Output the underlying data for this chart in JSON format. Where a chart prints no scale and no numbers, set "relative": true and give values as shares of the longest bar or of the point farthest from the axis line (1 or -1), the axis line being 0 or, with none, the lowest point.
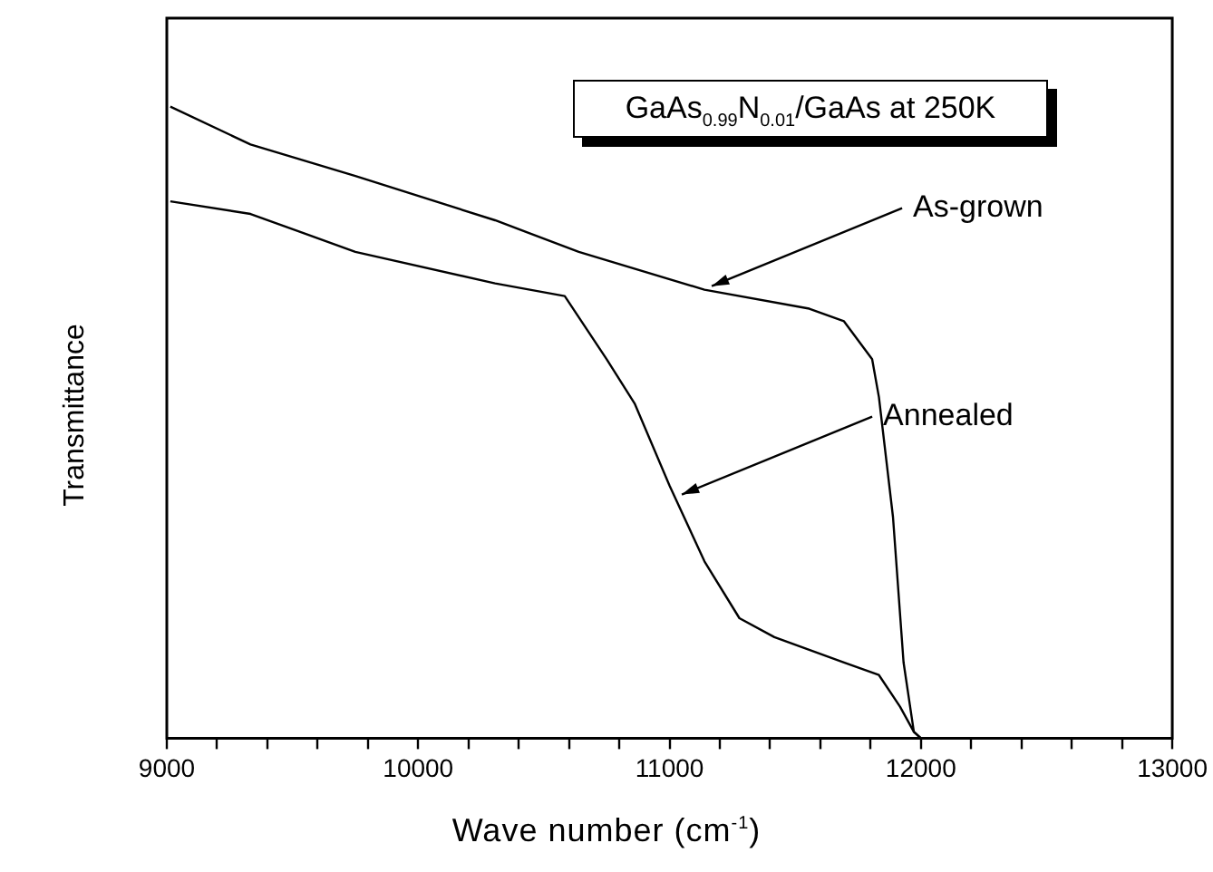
{
  "chart_data": {
    "type": "line",
    "title": "GaAs$_{0.99}$N$_{0.01}$/GaAs at 250K",
    "xlabel": "Wave number (cm$^{-1}$)",
    "ylabel": "Transmittance",
    "relative": true,
    "xlim": [
      9000,
      13000
    ],
    "xticks": [
      9000,
      {
        "value": 9200,
        "label": null
      },
      {
        "value": 9400,
        "label": null
      },
      {
        "value": 9600,
        "label": null
      },
      {
        "value": 9800,
        "label": null
      },
      10000,
      {
        "value": 10200,
        "label": null
      },
      {
        "value": 10400,
        "label": null
      },
      {
        "value": 10600,
        "label": null
      },
      {
        "value": 10800,
        "label": null
      },
      11000,
      {
        "value": 11200,
        "label": null
      },
      {
        "value": 11400,
        "label": null
      },
      {
        "value": 11600,
        "label": null
      },
      {
        "value": 11800,
        "label": null
      },
      12000,
      {
        "value": 12200,
        "label": null
      },
      {
        "value": 12400,
        "label": null
      },
      {
        "value": 12600,
        "label": null
      },
      {
        "value": 12800,
        "label": null
      },
      13000
    ],
    "series": [
      {
        "color": "#000000",
        "x": [
          9014,
          9333,
          9750,
          10306,
          10639,
          11139,
          11556,
          11694,
          11806,
          11833,
          11889,
          11931,
          11972,
          12000,
          13000
        ],
        "values": [
          1.0,
          0.94,
          0.89,
          0.82,
          0.77,
          0.71,
          0.68,
          0.66,
          0.6,
          0.54,
          0.35,
          0.12,
          0.01,
          0,
          0
        ]
      },
      {
        "color": "#000000",
        "x": [
          9014,
          9333,
          9750,
          10306,
          10583,
          10750,
          10861,
          11000,
          11139,
          11278,
          11417,
          11694,
          11833,
          11917,
          11972,
          12000,
          13000
        ],
        "values": [
          0.85,
          0.83,
          0.77,
          0.72,
          0.7,
          0.6,
          0.53,
          0.4,
          0.28,
          0.19,
          0.16,
          0.12,
          0.1,
          0.05,
          0.01,
          0,
          0
        ]
      }
    ],
    "annotations": [
      {
        "text": "As-grown",
        "x": 11139,
        "y": 0.71
      },
      {
        "text": "Annealed",
        "x": 11020,
        "y": 0.38
      }
    ],
    "grid": false,
    "legend": false,
    "marker": "none",
    "line_style": "solid"
  }
}
